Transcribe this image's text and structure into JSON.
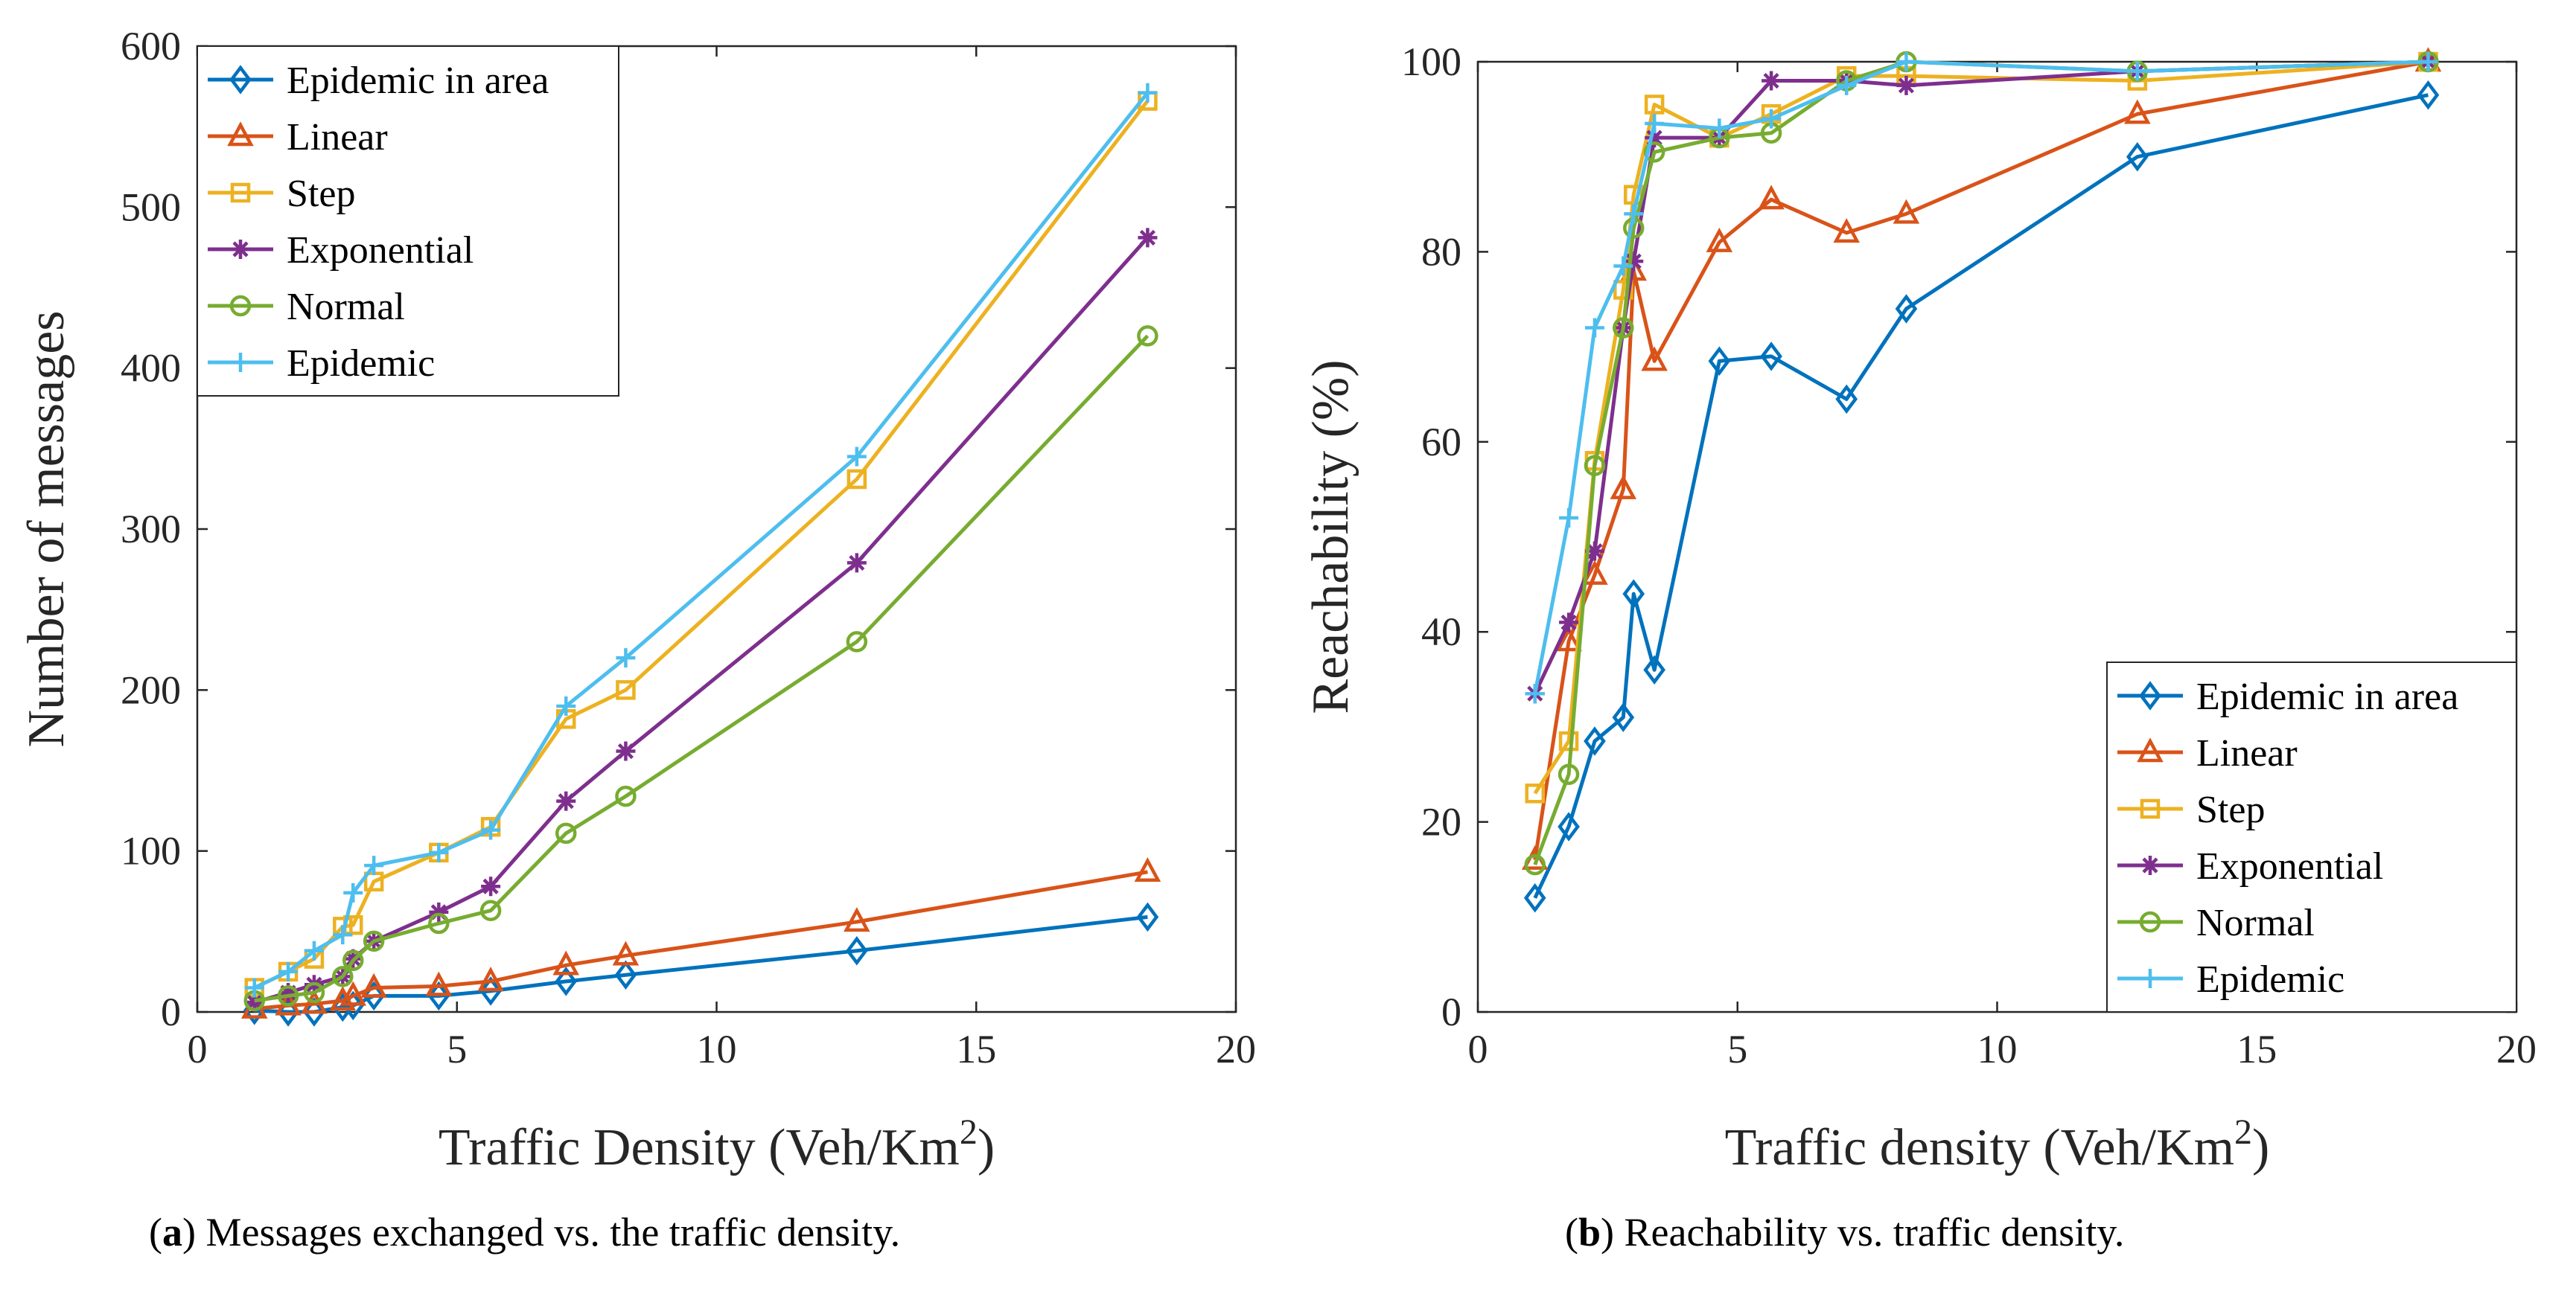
{
  "series_colors": {
    "Epidemic in area": "#0072BD",
    "Linear": "#D95319",
    "Step": "#EDB120",
    "Exponential": "#7E2F8E",
    "Normal": "#77AC30",
    "Epidemic": "#4DBEEE"
  },
  "captions": [
    {
      "letter": "a",
      "text": " Messages exchanged vs. the traffic density."
    },
    {
      "letter": "b",
      "text": " Reachability vs. traffic density."
    }
  ],
  "chart_data": [
    {
      "type": "line",
      "id": "a",
      "title": "",
      "xlabel": "Traffic Density (Veh/Km",
      "xlabel_sup": "2",
      "xlabel_end": ")",
      "ylabel": "Number of messages",
      "xlim": [
        0,
        20
      ],
      "ylim": [
        0,
        600
      ],
      "xticks": [
        0,
        5,
        10,
        15,
        20
      ],
      "yticks": [
        0,
        100,
        200,
        300,
        400,
        500,
        600
      ],
      "xtick_labels": [
        "0",
        "5",
        "10",
        "15",
        "20"
      ],
      "ytick_labels": [
        "0",
        "100",
        "200",
        "300",
        "400",
        "500",
        "600"
      ],
      "legend_position": "top-left",
      "x": [
        1.1,
        1.75,
        2.25,
        2.8,
        3.0,
        3.4,
        4.65,
        5.65,
        7.1,
        8.25,
        12.7,
        18.3
      ],
      "series": [
        {
          "name": "Epidemic in area",
          "marker": "diamond",
          "values": [
            1,
            0,
            0,
            3,
            4,
            10,
            10,
            13,
            19,
            23,
            38,
            59
          ]
        },
        {
          "name": "Linear",
          "marker": "triangle",
          "values": [
            2,
            4,
            5,
            7,
            10,
            15,
            16,
            19,
            29,
            35,
            56,
            87
          ]
        },
        {
          "name": "Step",
          "marker": "square",
          "values": [
            15,
            25,
            33,
            53,
            54,
            81,
            99,
            115,
            182,
            200,
            331,
            566
          ]
        },
        {
          "name": "Exponential",
          "marker": "star",
          "values": [
            6,
            12,
            17,
            22,
            33,
            44,
            62,
            78,
            131,
            162,
            279,
            481
          ]
        },
        {
          "name": "Normal",
          "marker": "circle",
          "values": [
            7,
            10,
            12,
            22,
            32,
            44,
            55,
            63,
            111,
            134,
            230,
            420
          ]
        },
        {
          "name": "Epidemic",
          "marker": "plus",
          "values": [
            15,
            25,
            38,
            48,
            74,
            91,
            99,
            113,
            190,
            220,
            345,
            571
          ]
        }
      ]
    },
    {
      "type": "line",
      "id": "b",
      "title": "",
      "xlabel": "Traffic density (Veh/Km",
      "xlabel_sup": "2",
      "xlabel_end": ")",
      "ylabel": "Reachability (%)",
      "xlim": [
        0,
        20
      ],
      "ylim": [
        0,
        100
      ],
      "xticks": [
        0,
        5,
        10,
        15,
        20
      ],
      "yticks": [
        0,
        20,
        40,
        60,
        80,
        100
      ],
      "xtick_labels": [
        "0",
        "5",
        "10",
        "15",
        "20"
      ],
      "ytick_labels": [
        "0",
        "20",
        "40",
        "60",
        "80",
        "100"
      ],
      "legend_position": "bottom-right",
      "x": [
        1.1,
        1.75,
        2.25,
        2.8,
        3.0,
        3.4,
        4.65,
        5.65,
        7.1,
        8.25,
        12.7,
        18.3
      ],
      "series": [
        {
          "name": "Epidemic in area",
          "marker": "diamond",
          "values": [
            12,
            19.5,
            28.5,
            31,
            44,
            36,
            68.5,
            69,
            64.5,
            74,
            90,
            96.5
          ]
        },
        {
          "name": "Linear",
          "marker": "triangle",
          "values": [
            16,
            39,
            46,
            55,
            78,
            68.5,
            81,
            85.5,
            82,
            84,
            94.5,
            100
          ]
        },
        {
          "name": "Step",
          "marker": "square",
          "values": [
            23,
            28.5,
            58,
            76,
            86,
            95.5,
            92,
            94.5,
            98.5,
            98.5,
            98,
            100
          ]
        },
        {
          "name": "Exponential",
          "marker": "star",
          "values": [
            33.5,
            41,
            48.5,
            72,
            79,
            92,
            92,
            98,
            98,
            97.5,
            99,
            100
          ]
        },
        {
          "name": "Normal",
          "marker": "circle",
          "values": [
            15.5,
            25,
            57.5,
            72,
            82.5,
            90.5,
            92,
            92.5,
            98,
            100,
            99,
            100
          ]
        },
        {
          "name": "Epidemic",
          "marker": "plus",
          "values": [
            33.5,
            52,
            72,
            78.5,
            84,
            93.5,
            93,
            94,
            97.5,
            100,
            99,
            100
          ]
        }
      ]
    }
  ]
}
